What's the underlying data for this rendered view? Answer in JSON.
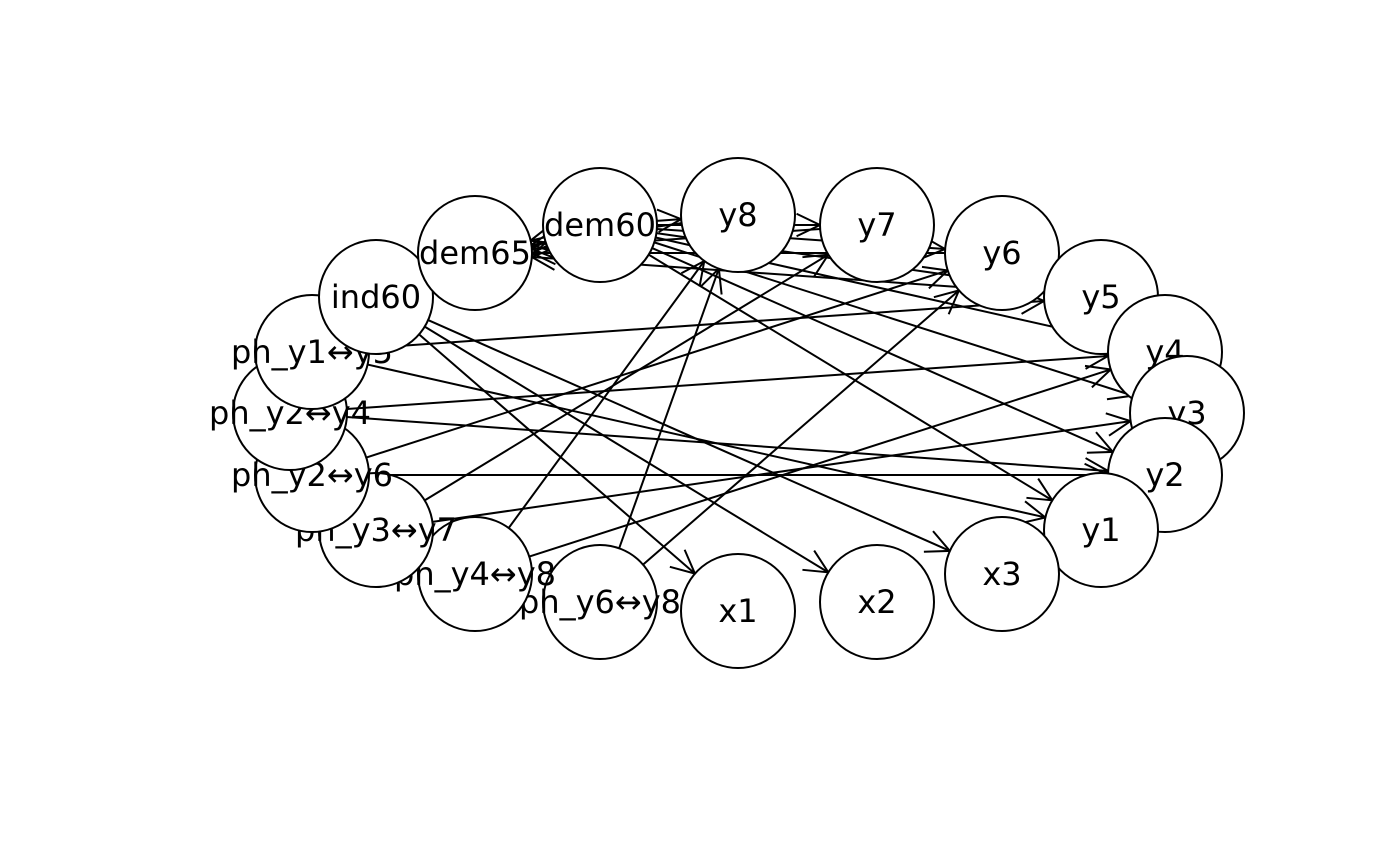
{
  "diagram": {
    "type": "network-graph",
    "nodes": [
      {
        "id": "y8",
        "label": "y8"
      },
      {
        "id": "y7",
        "label": "y7"
      },
      {
        "id": "y6",
        "label": "y6"
      },
      {
        "id": "y5",
        "label": "y5"
      },
      {
        "id": "y4",
        "label": "y4"
      },
      {
        "id": "y3",
        "label": "y3"
      },
      {
        "id": "y2",
        "label": "y2"
      },
      {
        "id": "y1",
        "label": "y1"
      },
      {
        "id": "x3",
        "label": "x3"
      },
      {
        "id": "x2",
        "label": "x2"
      },
      {
        "id": "x1",
        "label": "x1"
      },
      {
        "id": "ph_y6y8",
        "label": "ph_y6↔y8"
      },
      {
        "id": "ph_y4y8",
        "label": "ph_y4↔y8"
      },
      {
        "id": "ph_y3y7",
        "label": "ph_y3↔y7"
      },
      {
        "id": "ph_y2y6",
        "label": "ph_y2↔y6"
      },
      {
        "id": "ph_y2y4",
        "label": "ph_y2↔y4"
      },
      {
        "id": "ph_y1y5",
        "label": "ph_y1↔y5"
      },
      {
        "id": "ind60",
        "label": "ind60"
      },
      {
        "id": "dem65",
        "label": "dem65"
      },
      {
        "id": "dem60",
        "label": "dem60"
      }
    ],
    "edges": [
      {
        "from": "dem60",
        "to": "y8",
        "arrow": true
      },
      {
        "from": "dem60",
        "to": "y7",
        "arrow": true
      },
      {
        "from": "dem60",
        "to": "y6",
        "arrow": true
      },
      {
        "from": "dem60",
        "to": "y5",
        "arrow": true
      },
      {
        "from": "dem60",
        "to": "y4",
        "arrow": true
      },
      {
        "from": "dem60",
        "to": "y3",
        "arrow": true
      },
      {
        "from": "dem60",
        "to": "y2",
        "arrow": true
      },
      {
        "from": "dem60",
        "to": "y1",
        "arrow": true
      },
      {
        "from": "dem60",
        "to": "dem65",
        "arrow": true
      },
      {
        "from": "y8",
        "to": "dem65",
        "arrow": true
      },
      {
        "from": "y7",
        "to": "dem65",
        "arrow": true
      },
      {
        "from": "y6",
        "to": "dem65",
        "arrow": true
      },
      {
        "from": "y5",
        "to": "dem65",
        "arrow": true
      },
      {
        "from": "ind60",
        "to": "dem60",
        "arrow": true
      },
      {
        "from": "ind60",
        "to": "dem65",
        "arrow": true
      },
      {
        "from": "ind60",
        "to": "x1",
        "arrow": true
      },
      {
        "from": "ind60",
        "to": "x2",
        "arrow": true
      },
      {
        "from": "ind60",
        "to": "x3",
        "arrow": true
      },
      {
        "from": "ph_y1y5",
        "to": "y5",
        "arrow": true
      },
      {
        "from": "ph_y1y5",
        "to": "y1",
        "arrow": true
      },
      {
        "from": "ph_y2y4",
        "to": "y4",
        "arrow": true
      },
      {
        "from": "ph_y2y4",
        "to": "y2",
        "arrow": true
      },
      {
        "from": "ph_y2y6",
        "to": "y6",
        "arrow": true
      },
      {
        "from": "ph_y2y6",
        "to": "y2",
        "arrow": true
      },
      {
        "from": "ph_y3y7",
        "to": "y7",
        "arrow": true
      },
      {
        "from": "ph_y3y7",
        "to": "y3",
        "arrow": true
      },
      {
        "from": "ph_y4y8",
        "to": "y8",
        "arrow": true
      },
      {
        "from": "ph_y4y8",
        "to": "y4",
        "arrow": true
      },
      {
        "from": "ph_y6y8",
        "to": "y8",
        "arrow": true
      },
      {
        "from": "ph_y6y8",
        "to": "y6",
        "arrow": true
      }
    ],
    "colors": {
      "stroke": "#000000",
      "node_fill": "#ffffff",
      "background": "#ffffff"
    }
  }
}
